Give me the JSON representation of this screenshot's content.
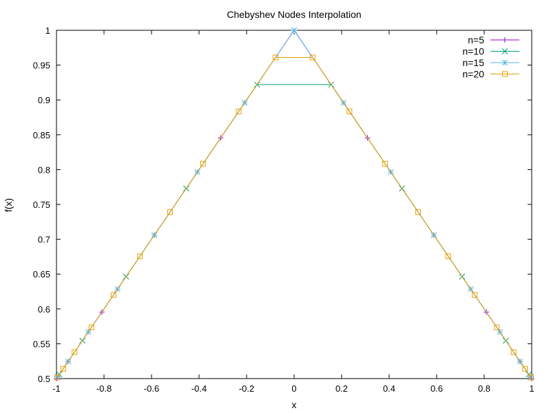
{
  "chart_data": {
    "type": "line",
    "title": "Chebyshev Nodes Interpolation",
    "xlabel": "x",
    "ylabel": "f(x)",
    "xlim": [
      -1,
      1
    ],
    "ylim": [
      0.5,
      1
    ],
    "x_ticks": [
      "-1",
      "-0.8",
      "-0.6",
      "-0.4",
      "-0.2",
      "0",
      "0.2",
      "0.4",
      "0.6",
      "0.8",
      "1"
    ],
    "y_ticks": [
      "0.5",
      "0.55",
      "0.6",
      "0.65",
      "0.7",
      "0.75",
      "0.8",
      "0.85",
      "0.9",
      "0.95",
      "1"
    ],
    "grid": false,
    "legend": "top-right",
    "series": [
      {
        "name": "n=5",
        "color": "#9400d3",
        "marker": "plus",
        "x": [
          -1,
          -0.951,
          -0.809,
          -0.588,
          -0.309,
          0,
          0.309,
          0.588,
          0.809,
          0.951,
          1
        ],
        "y": [
          0.5,
          0.5245,
          0.5955,
          0.706,
          0.8455,
          1,
          0.8455,
          0.706,
          0.5955,
          0.5245,
          0.5
        ]
      },
      {
        "name": "n=10",
        "color": "#009e73",
        "marker": "x",
        "x": [
          -0.988,
          -0.891,
          -0.707,
          -0.454,
          -0.156,
          0.156,
          0.454,
          0.707,
          0.891,
          0.988
        ],
        "y": [
          0.506,
          0.5545,
          0.6465,
          0.773,
          0.922,
          0.922,
          0.773,
          0.6465,
          0.5545,
          0.506
        ]
      },
      {
        "name": "n=15",
        "color": "#56b4e9",
        "marker": "star",
        "x": [
          -0.995,
          -0.951,
          -0.866,
          -0.743,
          -0.588,
          -0.407,
          -0.208,
          0,
          0.208,
          0.407,
          0.588,
          0.743,
          0.866,
          0.951,
          0.995
        ],
        "y": [
          0.5025,
          0.5245,
          0.567,
          0.6285,
          0.706,
          0.7965,
          0.896,
          1,
          0.896,
          0.7965,
          0.706,
          0.6285,
          0.567,
          0.5245,
          0.5025
        ]
      },
      {
        "name": "n=20",
        "color": "#e69f00",
        "marker": "square",
        "x": [
          -0.997,
          -0.972,
          -0.924,
          -0.853,
          -0.76,
          -0.649,
          -0.522,
          -0.383,
          -0.233,
          -0.078,
          0.078,
          0.233,
          0.383,
          0.522,
          0.649,
          0.76,
          0.853,
          0.924,
          0.972,
          0.997
        ],
        "y": [
          0.5015,
          0.514,
          0.538,
          0.5735,
          0.62,
          0.6755,
          0.739,
          0.8085,
          0.8835,
          0.961,
          0.961,
          0.8835,
          0.8085,
          0.739,
          0.6755,
          0.62,
          0.5735,
          0.538,
          0.514,
          0.5015
        ]
      }
    ]
  }
}
